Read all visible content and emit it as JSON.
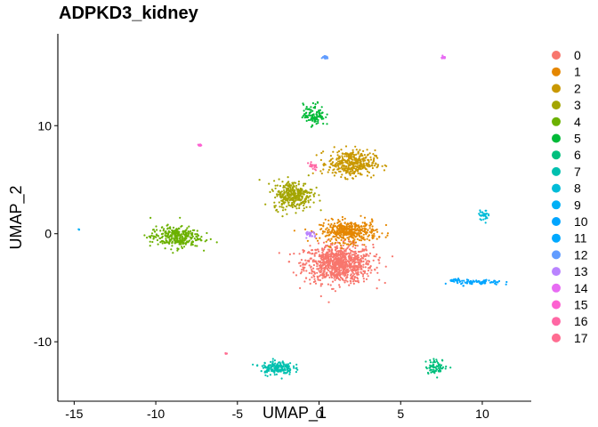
{
  "chart_data": {
    "type": "scatter",
    "title": "ADPKD3_kidney",
    "xlabel": "UMAP_1",
    "ylabel": "UMAP_2",
    "xlim": [
      -16,
      13
    ],
    "ylim": [
      -15.5,
      18.5
    ],
    "xticks": [
      -15,
      -10,
      -5,
      0,
      5,
      10
    ],
    "xtick_labels": [
      "-15",
      "-10",
      "-5",
      "0",
      "5",
      "10"
    ],
    "yticks": [
      -10,
      0,
      10
    ],
    "ytick_labels": [
      "-10",
      "0",
      "10"
    ],
    "grid": false,
    "legend_position": "right",
    "clusters": [
      {
        "name": "0",
        "color": "#F8766D",
        "center": [
          1.2,
          -2.8
        ],
        "spread": [
          1.9,
          1.6
        ],
        "n": 900
      },
      {
        "name": "1",
        "color": "#E58700",
        "center": [
          1.8,
          0.2
        ],
        "spread": [
          1.6,
          0.9
        ],
        "n": 420
      },
      {
        "name": "2",
        "color": "#C99800",
        "center": [
          2.0,
          6.5
        ],
        "spread": [
          1.3,
          1.1
        ],
        "n": 380
      },
      {
        "name": "3",
        "color": "#A3A500",
        "center": [
          -1.6,
          3.6
        ],
        "spread": [
          1.1,
          1.2
        ],
        "n": 330
      },
      {
        "name": "4",
        "color": "#6BB100",
        "center": [
          -8.8,
          -0.3
        ],
        "spread": [
          1.4,
          0.9
        ],
        "n": 300
      },
      {
        "name": "5",
        "color": "#00BA38",
        "center": [
          -0.3,
          11.0
        ],
        "spread": [
          0.6,
          0.9
        ],
        "n": 110
      },
      {
        "name": "6",
        "color": "#00BF7D",
        "center": [
          7.2,
          -12.3
        ],
        "spread": [
          0.6,
          0.6
        ],
        "n": 70
      },
      {
        "name": "7",
        "color": "#00C0AF",
        "center": [
          -2.6,
          -12.4
        ],
        "spread": [
          0.9,
          0.6
        ],
        "n": 170
      },
      {
        "name": "8",
        "color": "#00BCD8",
        "center": [
          10.1,
          1.7
        ],
        "spread": [
          0.3,
          0.4
        ],
        "n": 30
      },
      {
        "name": "9",
        "color": "#00B0F6",
        "center": [
          -14.7,
          0.4
        ],
        "spread": [
          0.05,
          0.05
        ],
        "n": 3
      },
      {
        "name": "10",
        "color": "#00A5FF",
        "center": [
          9.8,
          -4.5
        ],
        "spread": [
          1.3,
          0.25
        ],
        "n": 70
      },
      {
        "name": "11",
        "color": "#00A9FF",
        "center": [
          8.4,
          -4.3
        ],
        "spread": [
          0.3,
          0.1
        ],
        "n": 25
      },
      {
        "name": "12",
        "color": "#619CFF",
        "center": [
          0.4,
          16.3
        ],
        "spread": [
          0.2,
          0.1
        ],
        "n": 25
      },
      {
        "name": "13",
        "color": "#B983FF",
        "center": [
          -0.5,
          -0.1
        ],
        "spread": [
          0.3,
          0.3
        ],
        "n": 25
      },
      {
        "name": "14",
        "color": "#E76BF3",
        "center": [
          7.6,
          16.3
        ],
        "spread": [
          0.15,
          0.1
        ],
        "n": 15
      },
      {
        "name": "15",
        "color": "#FD61D1",
        "center": [
          -7.3,
          8.2
        ],
        "spread": [
          0.1,
          0.1
        ],
        "n": 10
      },
      {
        "name": "16",
        "color": "#FF67A4",
        "center": [
          -0.4,
          6.2
        ],
        "spread": [
          0.4,
          0.3
        ],
        "n": 20
      },
      {
        "name": "17",
        "color": "#FF6C91",
        "center": [
          -5.7,
          -11.1
        ],
        "spread": [
          0.08,
          0.05
        ],
        "n": 4
      }
    ]
  }
}
